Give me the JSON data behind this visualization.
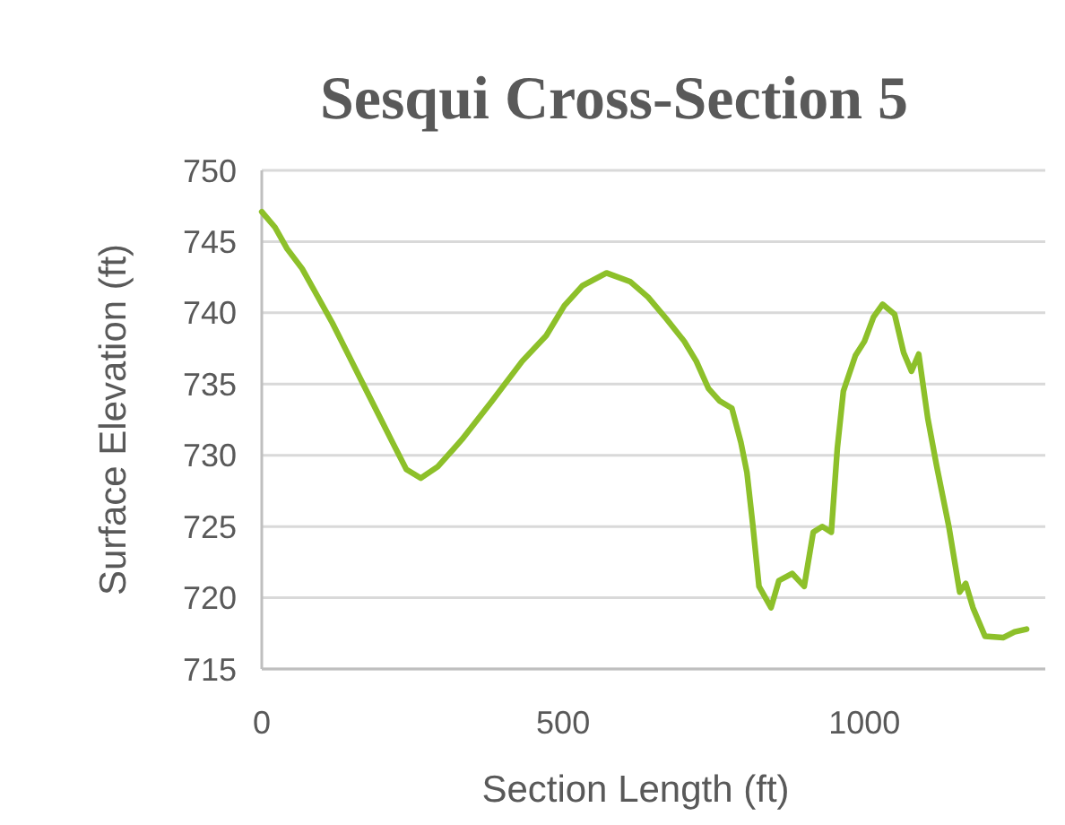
{
  "chart_data": {
    "type": "line",
    "title": "Sesqui Cross-Section 5",
    "xlabel": "Section Length (ft)",
    "ylabel": "Surface Elevation (ft)",
    "xlim": [
      0,
      1300
    ],
    "xticks": [
      0,
      500,
      1000
    ],
    "ylim": [
      715,
      750
    ],
    "yticks": [
      715,
      720,
      725,
      730,
      735,
      740,
      745,
      750
    ],
    "grid": "y",
    "marker": "none",
    "line_style": "solid",
    "series": [
      {
        "color": "#8dc02a",
        "x": [
          0,
          22,
          42,
          67,
          92,
          117,
          142,
          167,
          192,
          217,
          240,
          264,
          292,
          332,
          382,
          432,
          472,
          502,
          532,
          572,
          611,
          641,
          671,
          701,
          721,
          741,
          760,
          780,
          795,
          805,
          815,
          825,
          845,
          858,
          880,
          900,
          915,
          930,
          945,
          955,
          965,
          985,
          1000,
          1015,
          1030,
          1050,
          1065,
          1078,
          1090,
          1105,
          1120,
          1140,
          1158,
          1168,
          1180,
          1200,
          1230,
          1249,
          1269
        ],
        "values": [
          747.1,
          746.0,
          744.5,
          743.1,
          741.2,
          739.3,
          737.2,
          735.1,
          733.0,
          730.9,
          729.0,
          728.4,
          729.2,
          731.1,
          733.8,
          736.6,
          738.4,
          740.5,
          741.9,
          742.8,
          742.2,
          741.1,
          739.6,
          738.0,
          736.6,
          734.7,
          733.8,
          733.3,
          730.9,
          728.8,
          725.0,
          720.8,
          719.3,
          721.2,
          721.7,
          720.8,
          724.6,
          725.0,
          724.6,
          730.5,
          734.5,
          737.0,
          738.0,
          739.7,
          740.6,
          739.9,
          737.2,
          735.9,
          737.1,
          732.6,
          729.2,
          725.0,
          720.4,
          721.0,
          719.3,
          717.3,
          717.2,
          717.6,
          717.8
        ]
      }
    ]
  }
}
